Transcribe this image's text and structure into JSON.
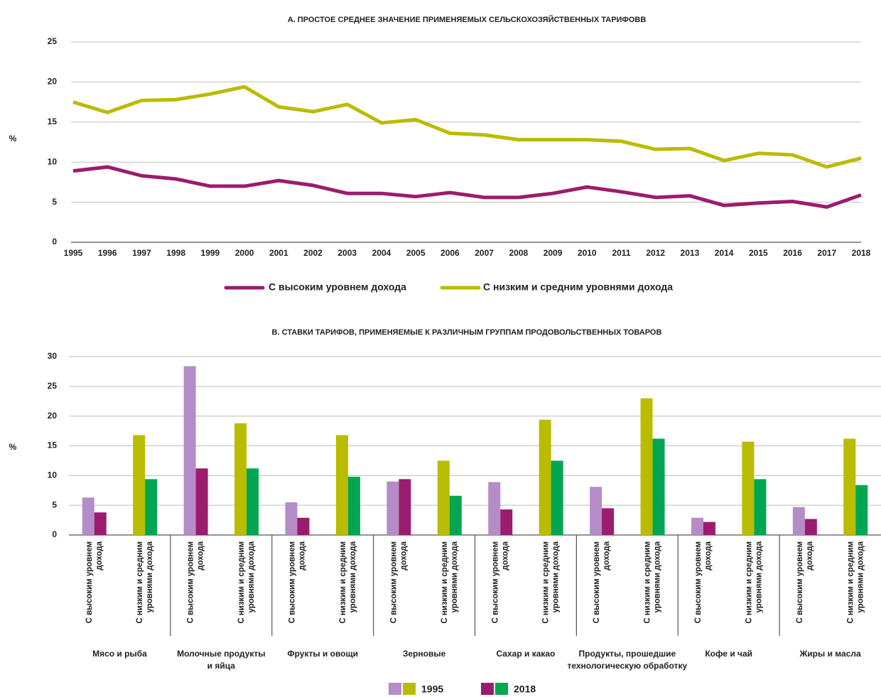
{
  "chart_data": [
    {
      "type": "line",
      "title": "А. ПРОСТОЕ СРЕДНЕЕ ЗНАЧЕНИЕ ПРИМЕНЯЕМЫХ СЕЛЬСКОХОЗЯЙСТВЕННЫХ ТАРИФОВВ",
      "y_label": "%",
      "x": [
        1995,
        1996,
        1997,
        1998,
        1999,
        2000,
        2001,
        2002,
        2003,
        2004,
        2005,
        2006,
        2007,
        2008,
        2009,
        2010,
        2011,
        2012,
        2013,
        2014,
        2015,
        2016,
        2017,
        2018
      ],
      "xlim": [
        1995,
        2018
      ],
      "xticks": [
        1995,
        1996,
        1997,
        1998,
        1999,
        2000,
        2001,
        2002,
        2003,
        2004,
        2005,
        2006,
        2007,
        2008,
        2009,
        2010,
        2011,
        2012,
        2013,
        2014,
        2015,
        2016,
        2017,
        2018
      ],
      "ylim": [
        0,
        25
      ],
      "yticks": [
        0,
        5,
        10,
        15,
        20,
        25
      ],
      "grid": true,
      "series": [
        {
          "name": "С высоким уровнем дохода",
          "color": "#9b1c6e",
          "values": [
            8.9,
            9.4,
            8.3,
            7.9,
            7.0,
            7.0,
            7.7,
            7.1,
            6.1,
            6.1,
            5.7,
            6.2,
            5.6,
            5.6,
            6.1,
            6.9,
            6.3,
            5.6,
            5.8,
            4.6,
            4.9,
            5.1,
            4.4,
            5.9
          ]
        },
        {
          "name": "С низким и средним уровнями дохода",
          "color": "#b9bc00",
          "values": [
            17.5,
            16.2,
            17.7,
            17.8,
            18.5,
            19.4,
            16.9,
            16.3,
            17.2,
            14.9,
            15.3,
            13.6,
            13.4,
            12.8,
            12.8,
            12.8,
            12.6,
            11.6,
            11.7,
            10.2,
            11.1,
            10.9,
            9.4,
            10.5
          ]
        }
      ]
    },
    {
      "type": "grouped_bar",
      "title": "B. СТАВКИ ТАРИФОВ, ПРИМЕНЯЕМЫЕ К РАЗЛИЧНЫМ ГРУППАМ ПРОДОВОЛЬСТВЕННЫХ ТОВАРОВ",
      "y_label": "%",
      "groups": [
        [
          "Мясо и рыба"
        ],
        [
          "Молочные продукты",
          "и яйца"
        ],
        [
          "Фрукты и овощи"
        ],
        [
          "Зерновые"
        ],
        [
          "Сахар и какао"
        ],
        [
          "Продукты, прошедшие",
          "технологическую обработку"
        ],
        [
          "Кофе и чай"
        ],
        [
          "Жиры и масла"
        ]
      ],
      "subgroups": [
        [
          "С высоким уровнем",
          "дохода"
        ],
        [
          "С низким и средним",
          "уровнями дохода"
        ]
      ],
      "ylim": [
        0,
        30
      ],
      "yticks": [
        0,
        5,
        10,
        15,
        20,
        25,
        30
      ],
      "grid": true,
      "series": [
        {
          "name": "1995",
          "colors": [
            "#b58cc8",
            "#b9bc00"
          ],
          "values": [
            6.3,
            16.8,
            28.4,
            18.8,
            5.5,
            16.8,
            9.0,
            12.5,
            8.9,
            19.4,
            8.1,
            23.0,
            2.9,
            15.7,
            4.7,
            16.2
          ]
        },
        {
          "name": "2018",
          "colors": [
            "#9b1c6e",
            "#00a651"
          ],
          "values": [
            3.8,
            9.4,
            11.2,
            11.2,
            2.9,
            9.8,
            9.4,
            6.6,
            4.3,
            12.5,
            4.5,
            16.2,
            2.2,
            9.4,
            2.7,
            8.4
          ]
        }
      ]
    }
  ]
}
